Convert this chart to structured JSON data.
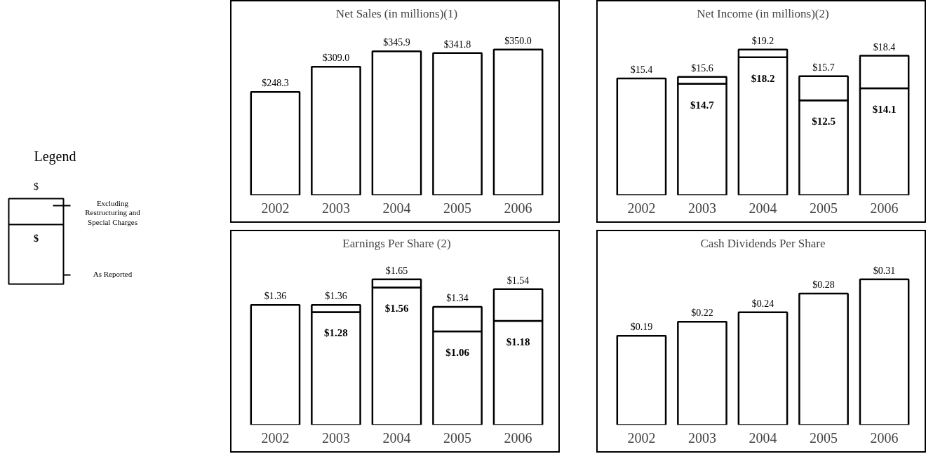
{
  "chart_data": [
    {
      "type": "other",
      "title": "Legend",
      "annotations": [
        "$",
        "$",
        "Excluding Restructuring and Special Charges",
        "As Reported"
      ]
    },
    {
      "type": "bar",
      "title": "Net Sales (in millions)(1)",
      "categories": [
        "2002",
        "2003",
        "2004",
        "2005",
        "2006"
      ],
      "tick_labels": "x",
      "series": [
        {
          "color": "#ffffff",
          "values": [
            248.3,
            309.0,
            345.9,
            341.8,
            350.0
          ],
          "value_labels": [
            "$248.3",
            "$309.0",
            "$345.9",
            "$341.8",
            "$350.0"
          ]
        }
      ]
    },
    {
      "type": "bar",
      "title": "Net Income (in millions)(2)",
      "categories": [
        "2002",
        "2003",
        "2004",
        "2005",
        "2006"
      ],
      "tick_labels": "x",
      "series": [
        {
          "color": "#ffffff",
          "values": [
            15.4,
            14.7,
            18.2,
            12.5,
            14.1
          ],
          "value_labels": [
            null,
            "$14.7",
            "$18.2",
            "$12.5",
            "$14.1"
          ]
        },
        {
          "color": "#ffffff",
          "values": [
            null,
            0.9,
            1.0,
            3.2,
            4.3
          ]
        }
      ],
      "stacked": true,
      "totals": [
        "$15.4",
        "$15.6",
        "$19.2",
        "$15.7",
        "$18.4"
      ]
    },
    {
      "type": "bar",
      "title": "Earnings Per Share (2)",
      "categories": [
        "2002",
        "2003",
        "2004",
        "2005",
        "2006"
      ],
      "tick_labels": "x",
      "series": [
        {
          "color": "#ffffff",
          "values": [
            1.36,
            1.28,
            1.56,
            1.06,
            1.18
          ],
          "value_labels": [
            null,
            "$1.28",
            "$1.56",
            "$1.06",
            "$1.18"
          ]
        },
        {
          "color": "#ffffff",
          "values": [
            null,
            0.08,
            0.09,
            0.28,
            0.36
          ]
        }
      ],
      "stacked": true,
      "totals": [
        "$1.36",
        "$1.36",
        "$1.65",
        "$1.34",
        "$1.54"
      ]
    },
    {
      "type": "bar",
      "title": "Cash Dividends Per Share",
      "categories": [
        "2002",
        "2003",
        "2004",
        "2005",
        "2006"
      ],
      "tick_labels": "x",
      "series": [
        {
          "color": "#ffffff",
          "values": [
            0.19,
            0.22,
            0.24,
            0.28,
            0.31
          ],
          "value_labels": [
            "$0.19",
            "$0.22",
            "$0.24",
            "$0.28",
            "$0.31"
          ]
        }
      ]
    }
  ]
}
